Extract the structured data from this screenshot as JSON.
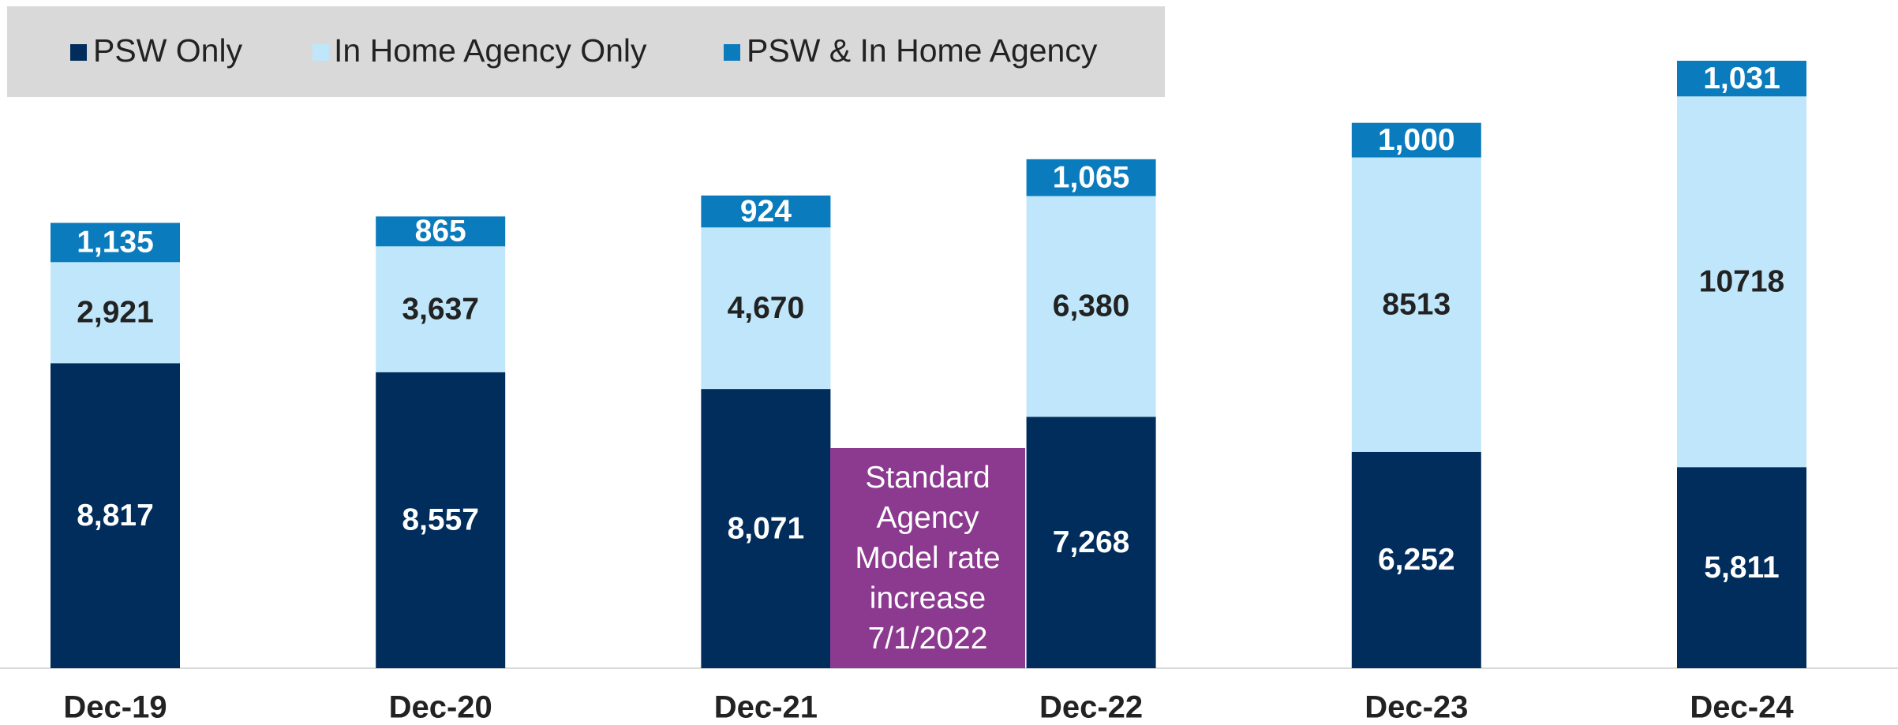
{
  "chart_data": {
    "type": "stacked_bar",
    "categories": [
      "Dec-19",
      "Dec-20",
      "Dec-21",
      "Dec-22",
      "Dec-23",
      "Dec-24"
    ],
    "series": [
      {
        "name": "PSW Only",
        "color": "#002d5c",
        "label_color": "#ffffff",
        "values": [
          8817,
          8557,
          8071,
          7268,
          6252,
          5811
        ],
        "value_labels": [
          "8,817",
          "8,557",
          "8,071",
          "7,268",
          "6,252",
          "5,811"
        ]
      },
      {
        "name": "In Home Agency Only",
        "color": "#bfe6fa",
        "label_color": "#222222",
        "values": [
          2921,
          3637,
          4670,
          6380,
          8513,
          10718
        ],
        "value_labels": [
          "2,921",
          "3,637",
          "4,670",
          "6,380",
          "8513",
          "10718"
        ]
      },
      {
        "name": "PSW & In Home Agency",
        "color": "#0a7bbd",
        "label_color": "#ffffff",
        "values": [
          1135,
          865,
          924,
          1065,
          1000,
          1031
        ],
        "value_labels": [
          "1,135",
          "865",
          "924",
          "1,065",
          "1,000",
          "1,031"
        ]
      }
    ],
    "annotation": "Standard Agency Model rate increase 7/1/2022",
    "legend": "top-left"
  }
}
